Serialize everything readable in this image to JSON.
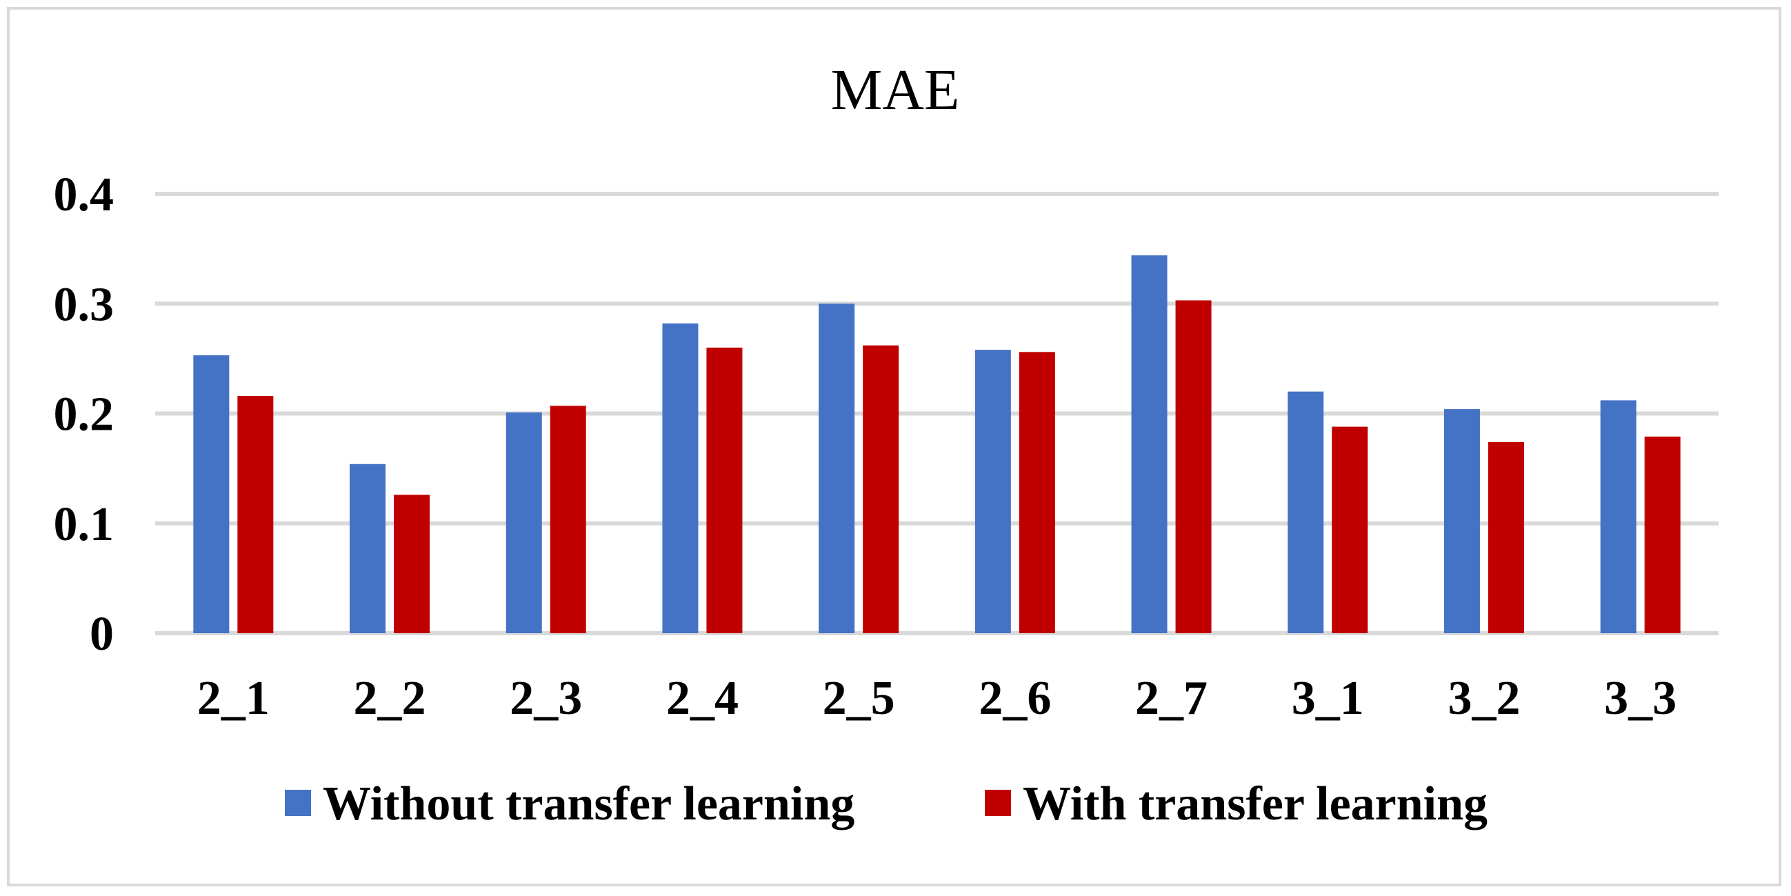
{
  "chart_data": {
    "type": "bar",
    "title": "MAE",
    "categories": [
      "2_1",
      "2_2",
      "2_3",
      "2_4",
      "2_5",
      "2_6",
      "2_7",
      "3_1",
      "3_2",
      "3_3"
    ],
    "series": [
      {
        "name": "Without transfer learning",
        "color": "#4472c4",
        "values": [
          0.253,
          0.154,
          0.201,
          0.282,
          0.3,
          0.258,
          0.344,
          0.22,
          0.204,
          0.212
        ]
      },
      {
        "name": "With transfer learning",
        "color": "#c00000",
        "values": [
          0.216,
          0.126,
          0.207,
          0.26,
          0.262,
          0.256,
          0.303,
          0.188,
          0.174,
          0.179
        ]
      }
    ],
    "yticks": [
      "0",
      "0.1",
      "0.2",
      "0.3",
      "0.4"
    ],
    "ylim": [
      0,
      0.4
    ],
    "xlabel": "",
    "ylabel": "",
    "grid": true,
    "legend": "bottom"
  }
}
